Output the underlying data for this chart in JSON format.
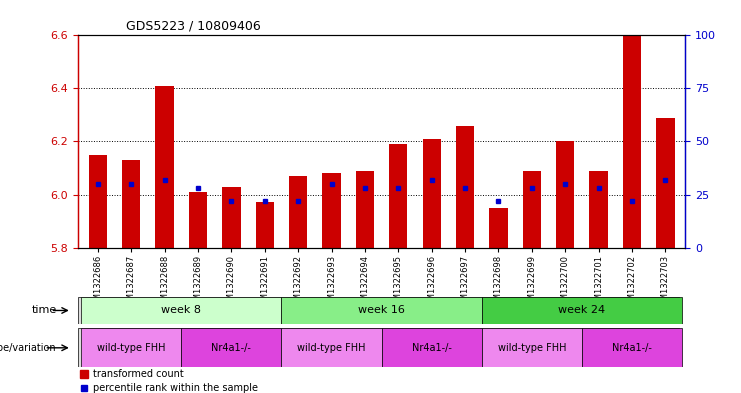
{
  "title": "GDS5223 / 10809406",
  "samples": [
    "GSM1322686",
    "GSM1322687",
    "GSM1322688",
    "GSM1322689",
    "GSM1322690",
    "GSM1322691",
    "GSM1322692",
    "GSM1322693",
    "GSM1322694",
    "GSM1322695",
    "GSM1322696",
    "GSM1322697",
    "GSM1322698",
    "GSM1322699",
    "GSM1322700",
    "GSM1322701",
    "GSM1322702",
    "GSM1322703"
  ],
  "transformed_count": [
    6.15,
    6.13,
    6.41,
    6.01,
    6.03,
    5.97,
    6.07,
    6.08,
    6.09,
    6.19,
    6.21,
    6.26,
    5.95,
    6.09,
    6.2,
    6.09,
    6.6,
    6.29
  ],
  "percentile_rank": [
    30,
    30,
    32,
    28,
    22,
    22,
    22,
    30,
    28,
    28,
    32,
    28,
    22,
    28,
    30,
    28,
    22,
    32
  ],
  "ymin": 5.8,
  "ymax": 6.6,
  "yticks": [
    5.8,
    6.0,
    6.2,
    6.4,
    6.6
  ],
  "right_yticks": [
    0,
    25,
    50,
    75,
    100
  ],
  "bar_color": "#CC0000",
  "percentile_color": "#0000CC",
  "time_groups": [
    {
      "label": "week 8",
      "start": 0,
      "end": 6,
      "color": "#ccffcc"
    },
    {
      "label": "week 16",
      "start": 6,
      "end": 12,
      "color": "#88ee88"
    },
    {
      "label": "week 24",
      "start": 12,
      "end": 18,
      "color": "#44cc44"
    }
  ],
  "genotype_groups": [
    {
      "label": "wild-type FHH",
      "start": 0,
      "end": 3,
      "color": "#ee88ee"
    },
    {
      "label": "Nr4a1-/-",
      "start": 3,
      "end": 6,
      "color": "#dd44dd"
    },
    {
      "label": "wild-type FHH",
      "start": 6,
      "end": 9,
      "color": "#ee88ee"
    },
    {
      "label": "Nr4a1-/-",
      "start": 9,
      "end": 12,
      "color": "#dd44dd"
    },
    {
      "label": "wild-type FHH",
      "start": 12,
      "end": 15,
      "color": "#ee88ee"
    },
    {
      "label": "Nr4a1-/-",
      "start": 15,
      "end": 18,
      "color": "#dd44dd"
    }
  ],
  "legend_red": "transformed count",
  "legend_blue": "percentile rank within the sample",
  "background_color": "#ffffff"
}
